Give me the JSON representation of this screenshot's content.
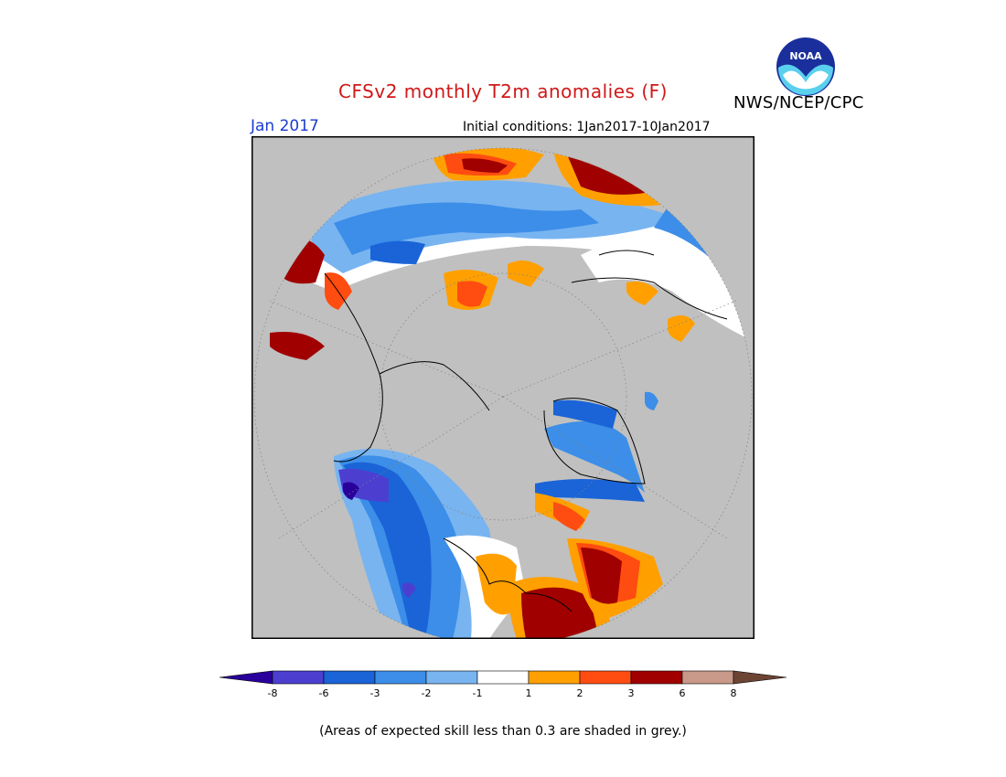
{
  "title": "CFSv2 monthly T2m anomalies (F)",
  "organization": "NWS/NCEP/CPC",
  "logo_text": "NOAA",
  "valid_month": "Jan 2017",
  "initial_conditions": "Initial conditions: 1Jan2017-10Jan2017",
  "footnote": "(Areas of expected skill less than 0.3 are shaded in grey.)",
  "colors": {
    "title": "#d01818",
    "valid_month": "#1c3cd0",
    "low_skill_grey": "#c0c0c0"
  },
  "colorbar": {
    "bins": [
      {
        "color": "#2a009c"
      },
      {
        "color": "#4c3fd0"
      },
      {
        "color": "#1a64d8"
      },
      {
        "color": "#3c8ee8"
      },
      {
        "color": "#78b4f0"
      },
      {
        "color": "#ffffff"
      },
      {
        "color": "#ffa000"
      },
      {
        "color": "#ff4c10"
      },
      {
        "color": "#a00000"
      },
      {
        "color": "#c89888"
      },
      {
        "color": "#6c4434"
      }
    ],
    "ticks": [
      "-8",
      "-6",
      "-3",
      "-2",
      "-1",
      "1",
      "2",
      "3",
      "6",
      "8"
    ]
  }
}
